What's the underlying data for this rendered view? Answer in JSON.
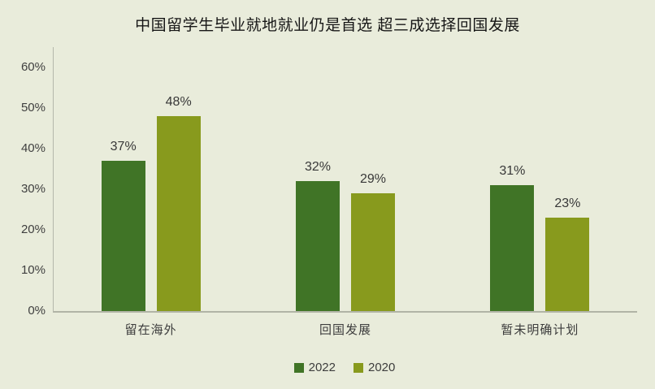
{
  "title": "中国留学生毕业就地就业仍是首选 超三成选择回国发展",
  "colors": {
    "background": "#e9ecdb",
    "series_2022": "#407426",
    "series_2020": "#889a1d",
    "axis_line": "#b5b8ab",
    "text": "#3d3d3d",
    "title_text": "#161616"
  },
  "chart_data": {
    "type": "bar",
    "title": "中国留学生毕业就地就业仍是首选 超三成选择回国发展",
    "categories": [
      "留在海外",
      "回国发展",
      "暂未明确计划"
    ],
    "series": [
      {
        "name": "2022",
        "color": "#407426",
        "values": [
          37,
          32,
          31
        ],
        "data_labels": [
          "37%",
          "32%",
          "31%"
        ]
      },
      {
        "name": "2020",
        "color": "#889a1d",
        "values": [
          48,
          29,
          23
        ],
        "data_labels": [
          "48%",
          "29%",
          "23%"
        ]
      }
    ],
    "xlabel": "",
    "ylabel": "",
    "y_ticks": [
      0,
      10,
      20,
      30,
      40,
      50,
      60
    ],
    "y_tick_labels": [
      "0%",
      "10%",
      "20%",
      "30%",
      "40%",
      "50%",
      "60%"
    ],
    "ylim": [
      0,
      65
    ],
    "unit": "%",
    "grid": false,
    "legend_position": "bottom",
    "legend": [
      "2022",
      "2020"
    ]
  }
}
